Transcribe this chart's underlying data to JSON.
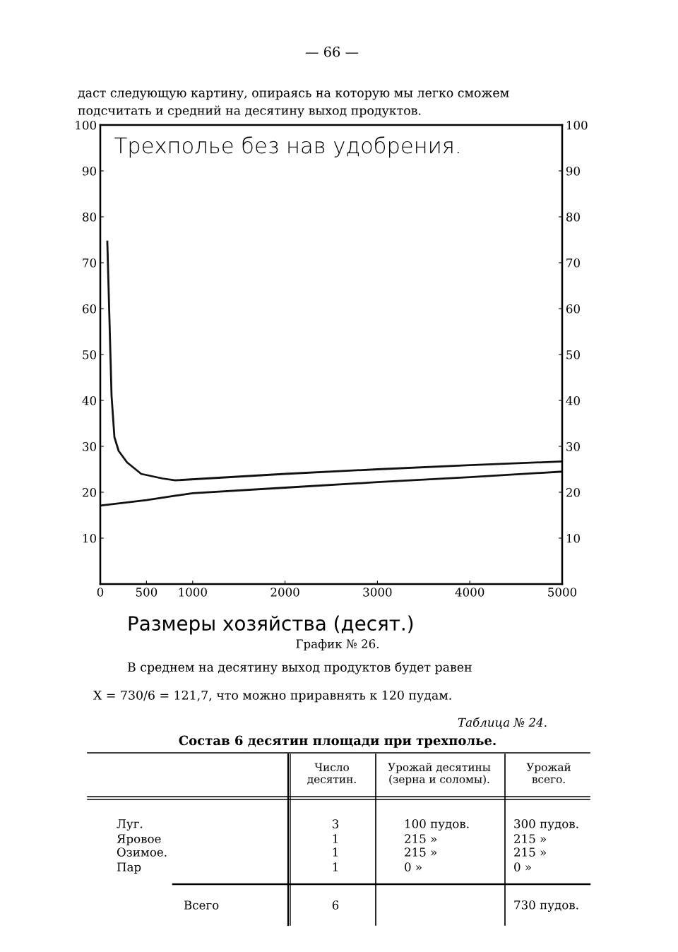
{
  "chart_data": {
    "type": "line",
    "title": "Трехполье без нав удобрения.",
    "xlabel": "Размеры хозяйства (десят.)",
    "series": [
      {
        "color": "#111111",
        "x": [
          76,
          122,
          153,
          199,
          290,
          443,
          673,
          810,
          2000,
          3000,
          4000,
          5000
        ],
        "values": [
          74.6,
          41,
          32,
          29,
          26.5,
          24,
          23,
          22.6,
          24.0,
          25.0,
          25.9,
          26.7
        ]
      },
      {
        "color": "#111111",
        "x": [
          0,
          500,
          800,
          1000,
          2000,
          3000,
          4000,
          5000
        ],
        "values": [
          17.1,
          18.3,
          19.2,
          19.8,
          21.0,
          22.2,
          23.3,
          24.5
        ]
      }
    ],
    "xlim": [
      0,
      5000
    ],
    "xticks": [
      0,
      500,
      1000,
      2000,
      3000,
      4000,
      5000
    ],
    "ylim": [
      0,
      100
    ],
    "yticks": [
      10,
      20,
      30,
      40,
      50,
      60,
      70,
      80,
      90,
      100
    ],
    "y2lim": [
      0,
      100
    ],
    "y2ticks": [
      10,
      20,
      30,
      40,
      50,
      60,
      70,
      80,
      90,
      100
    ],
    "grid": false,
    "legend": false,
    "line_style": "solid",
    "marker": "none",
    "annotations": [
      "— 66 —",
      "даст следующую картину, опираясь на которую мы легко сможем",
      "подсчитать и средний на десятину выход продуктов.",
      "График № 26.",
      "В среднем на десятину выход продуктов будет равен",
      "X = 730/6 = 121,7, что можно приравнять к 120 пудам.",
      "Таблица № 24.",
      "Состав 6 десятин площади при трехполье.",
      "Число\nдесятин.",
      "Урожай десятины\n(зерна и соломы).",
      "Урожай\nвсего.",
      "Луг.",
      "Яровое",
      "Озимое.",
      "Пар",
      "3",
      "1",
      "1",
      "1",
      "100 пудов.",
      "215 »",
      "215 »",
      "0 »",
      "300 пудов.",
      "215 »",
      "215 »",
      "0 »",
      "Всего",
      "6",
      "730 пудов."
    ]
  }
}
